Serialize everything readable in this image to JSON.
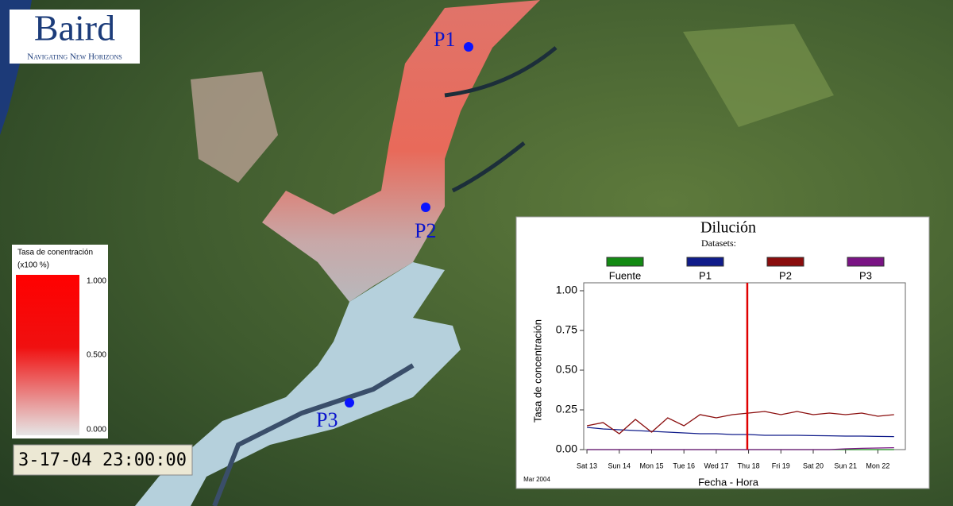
{
  "logo": {
    "name": "Baird",
    "tagline": "Navigating New Horizons"
  },
  "points": [
    {
      "label": "P1"
    },
    {
      "label": "P2"
    },
    {
      "label": "P3"
    }
  ],
  "colorbar": {
    "title": "Tasa de conentración",
    "units": "(x100 %)",
    "labels": [
      "1.000",
      "0.500",
      "0.000"
    ]
  },
  "timestamp": "3-17-04 23:00:00",
  "chart_data": {
    "type": "line",
    "title": "Dilución",
    "legend_title": "Datasets:",
    "y_label": "Tasa de concentración",
    "x_label": "Fecha - Hora",
    "x_note": "Mar 2004",
    "x": [
      13,
      13.5,
      14,
      14.5,
      15,
      15.5,
      16,
      16.5,
      17,
      17.5,
      18,
      18.5,
      19,
      19.5,
      20,
      20.5,
      21,
      21.5,
      22,
      22.5
    ],
    "series": [
      {
        "name": "Fuente",
        "color": "#138a13",
        "values": [
          0,
          0,
          0,
          0,
          0,
          0,
          0,
          0,
          0,
          0,
          0,
          0,
          0,
          0,
          0,
          0,
          0,
          0,
          0,
          0
        ]
      },
      {
        "name": "P1",
        "color": "#101c8a",
        "values": [
          0.14,
          0.13,
          0.125,
          0.12,
          0.115,
          0.11,
          0.105,
          0.1,
          0.1,
          0.095,
          0.095,
          0.09,
          0.09,
          0.09,
          0.088,
          0.087,
          0.085,
          0.085,
          0.083,
          0.082
        ]
      },
      {
        "name": "P2",
        "color": "#8a0d0d",
        "values": [
          0.15,
          0.17,
          0.1,
          0.19,
          0.11,
          0.2,
          0.15,
          0.22,
          0.2,
          0.22,
          0.23,
          0.24,
          0.22,
          0.24,
          0.22,
          0.23,
          0.22,
          0.23,
          0.21,
          0.22
        ]
      },
      {
        "name": "P3",
        "color": "#7a1484",
        "values": [
          0,
          0,
          0,
          0,
          0,
          0,
          0,
          0,
          0,
          0,
          0,
          0,
          0,
          0,
          0,
          0,
          0.005,
          0.008,
          0.01,
          0.012
        ]
      }
    ],
    "cursor_x": 17.96,
    "cursor_color": "#e00000",
    "xlim": [
      12.9,
      22.85
    ],
    "xticks": [
      {
        "value": 13,
        "label": "Sat 13"
      },
      {
        "value": 14,
        "label": "Sun 14"
      },
      {
        "value": 15,
        "label": "Mon 15"
      },
      {
        "value": 16,
        "label": "Tue 16"
      },
      {
        "value": 17,
        "label": "Wed 17"
      },
      {
        "value": 18,
        "label": "Thu 18"
      },
      {
        "value": 19,
        "label": "Fri 19"
      },
      {
        "value": 20,
        "label": "Sat 20"
      },
      {
        "value": 21,
        "label": "Sun 21"
      },
      {
        "value": 22,
        "label": "Mon 22"
      }
    ],
    "ylim": [
      0,
      1.05
    ],
    "yticks": [
      {
        "value": 0,
        "label": "0.00"
      },
      {
        "value": 0.25,
        "label": "0.25"
      },
      {
        "value": 0.5,
        "label": "0.50"
      },
      {
        "value": 0.75,
        "label": "0.75"
      },
      {
        "value": 1,
        "label": "1.00"
      }
    ]
  }
}
